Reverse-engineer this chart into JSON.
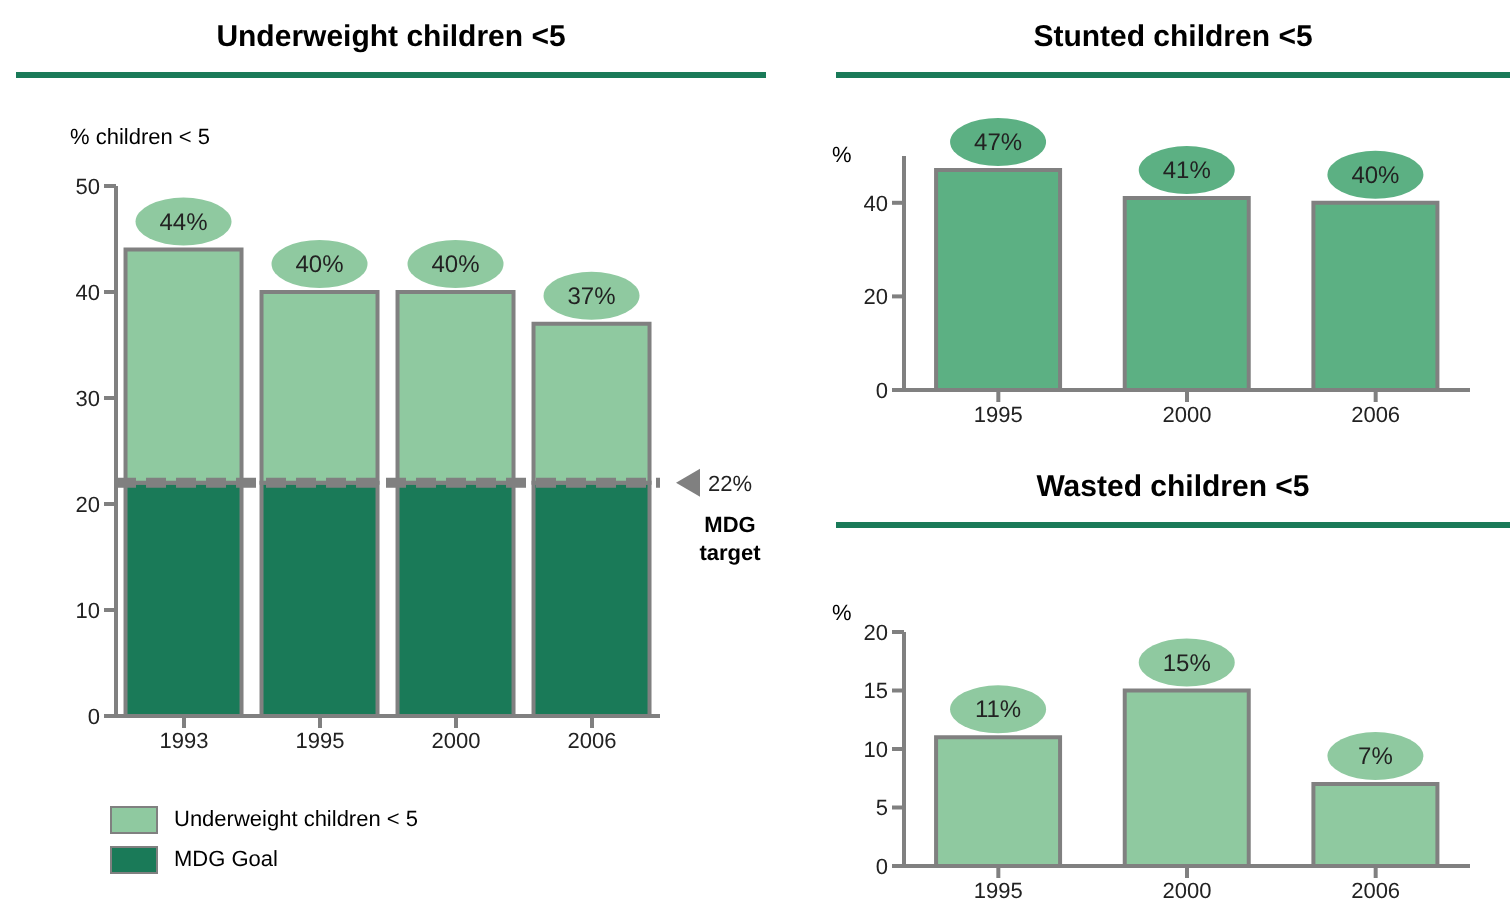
{
  "chart_data": [
    {
      "type": "bar",
      "title": "Underweight children <5",
      "ylabel": "% children < 5",
      "categories": [
        "1993",
        "1995",
        "2000",
        "2006"
      ],
      "stacked": true,
      "series": [
        {
          "name": "MDG Goal",
          "color": "#1a7a58",
          "values": [
            22,
            22,
            22,
            22
          ]
        },
        {
          "name": "Underweight children < 5",
          "color": "#8fc9a0",
          "values": [
            22,
            18,
            18,
            15
          ]
        }
      ],
      "totals": [
        "44%",
        "40%",
        "40%",
        "37%"
      ],
      "ylim": [
        0,
        50
      ],
      "yticks": [
        0,
        10,
        20,
        30,
        40,
        50
      ],
      "ref_lines": [
        {
          "axis": "y",
          "value": 22,
          "label": "22%",
          "color": "#808080",
          "line_style": "dashed"
        }
      ],
      "annotations": [
        "MDG target"
      ],
      "legend": "bottom",
      "grid": false
    },
    {
      "type": "bar",
      "title": "Stunted children <5",
      "ylabel": "%",
      "categories": [
        "1995",
        "2000",
        "2006"
      ],
      "series": [
        {
          "color": "#5cb083",
          "values": [
            47,
            41,
            40
          ],
          "value_labels": [
            "47%",
            "41%",
            "40%"
          ]
        }
      ],
      "ylim": [
        0,
        50
      ],
      "yticks": [
        0,
        20,
        40
      ],
      "grid": false,
      "legend": false
    },
    {
      "type": "bar",
      "title": "Wasted children <5",
      "ylabel": "%",
      "categories": [
        "1995",
        "2000",
        "2006"
      ],
      "series": [
        {
          "color": "#8fc9a0",
          "values": [
            11,
            15,
            7
          ],
          "value_labels": [
            "11%",
            "15%",
            "7%"
          ]
        }
      ],
      "ylim": [
        0,
        20
      ],
      "yticks": [
        0,
        5,
        10,
        15,
        20
      ],
      "grid": false,
      "legend": false
    }
  ]
}
